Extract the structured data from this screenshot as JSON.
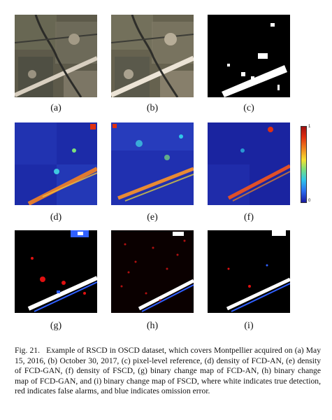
{
  "figure": {
    "panels": [
      {
        "id": "a",
        "label": "(a)",
        "kind": "rgb-t1"
      },
      {
        "id": "b",
        "label": "(b)",
        "kind": "rgb-t2"
      },
      {
        "id": "c",
        "label": "(c)",
        "kind": "reference"
      },
      {
        "id": "d",
        "label": "(d)",
        "kind": "density"
      },
      {
        "id": "e",
        "label": "(e)",
        "kind": "density"
      },
      {
        "id": "f",
        "label": "(f)",
        "kind": "density"
      },
      {
        "id": "g",
        "label": "(g)",
        "kind": "binary"
      },
      {
        "id": "h",
        "label": "(h)",
        "kind": "binary"
      },
      {
        "id": "i",
        "label": "(i)",
        "kind": "binary"
      }
    ],
    "colorbar": {
      "max_label": "1",
      "min_label": "0",
      "colors": [
        "#a01010",
        "#f08a20",
        "#f6e030",
        "#7ee07a",
        "#30c8e8",
        "#2a6ef0",
        "#1a1aa0"
      ]
    },
    "caption": {
      "fig_label": "Fig. 21.",
      "text": "Example of RSCD in OSCD dataset, which covers Montpellier acquired on (a) May 15, 2016, (b) October 30, 2017, (c) pixel-level reference, (d) density of FCD-AN, (e) density of FCD-GAN, (f) density of FSCD, (g) binary change map of FCD-AN, (h) binary change map of FCD-GAN, and (i) binary change map of FSCD, where white indicates true detection, red indicates false alarms, and blue indicates omission error."
    }
  }
}
